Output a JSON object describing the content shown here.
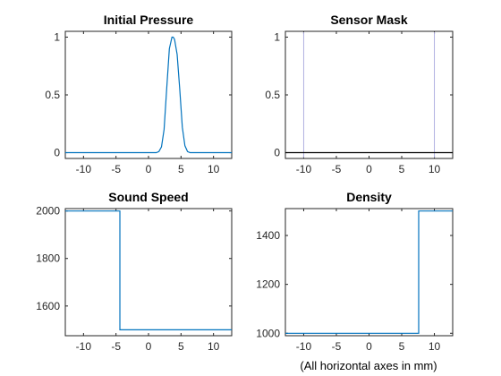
{
  "figure": {
    "note": "(All horizontal axes in mm)",
    "line_color": "#0072bd",
    "sensor_line_color": "#b0b0e0"
  },
  "chart_data": [
    {
      "type": "line",
      "title": "Initial Pressure",
      "xlabel": "",
      "ylabel": "",
      "xlim": [
        -12.8,
        12.8
      ],
      "ylim": [
        -0.05,
        1.05
      ],
      "xticks": [
        -10,
        -5,
        0,
        5,
        10
      ],
      "xtick_labels": [
        "-10",
        "-5",
        "0",
        "5",
        "10"
      ],
      "yticks": [
        0,
        0.5,
        1
      ],
      "ytick_labels": [
        "0",
        "0.5",
        "1"
      ],
      "grid": false,
      "series": [
        {
          "x": [
            -12.8,
            1.2,
            1.6,
            2.0,
            2.4,
            2.8,
            3.2,
            3.6,
            3.8,
            4.0,
            4.4,
            4.8,
            5.2,
            5.6,
            6.0,
            6.4,
            12.8
          ],
          "y": [
            0,
            0,
            0.01,
            0.05,
            0.2,
            0.55,
            0.9,
            1.0,
            1.0,
            0.98,
            0.85,
            0.55,
            0.22,
            0.06,
            0.01,
            0,
            0
          ]
        }
      ]
    },
    {
      "type": "line",
      "title": "Sensor Mask",
      "xlabel": "",
      "ylabel": "",
      "xlim": [
        -12.8,
        12.8
      ],
      "ylim": [
        -0.05,
        1.05
      ],
      "xticks": [
        -10,
        -5,
        0,
        5,
        10
      ],
      "xtick_labels": [
        "-10",
        "-5",
        "0",
        "5",
        "10"
      ],
      "yticks": [
        0,
        0.5,
        1
      ],
      "ytick_labels": [
        "0",
        "0.5",
        "1"
      ],
      "grid": false,
      "series": [
        {
          "x": [
            -12.8,
            12.8
          ],
          "y": [
            0,
            0
          ]
        }
      ],
      "sensor_positions": [
        -10,
        10
      ]
    },
    {
      "type": "line",
      "title": "Sound Speed",
      "xlabel": "",
      "ylabel": "",
      "xlim": [
        -12.8,
        12.8
      ],
      "ylim": [
        1475,
        2010
      ],
      "xticks": [
        -10,
        -5,
        0,
        5,
        10
      ],
      "xtick_labels": [
        "-10",
        "-5",
        "0",
        "5",
        "10"
      ],
      "yticks": [
        1600,
        1800,
        2000
      ],
      "ytick_labels": [
        "1600",
        "1800",
        "2000"
      ],
      "grid": false,
      "series": [
        {
          "x": [
            -12.8,
            -4.4,
            -4.4,
            12.8
          ],
          "y": [
            2000,
            2000,
            1500,
            1500
          ]
        }
      ]
    },
    {
      "type": "line",
      "title": "Density",
      "xlabel": "",
      "ylabel": "",
      "xlim": [
        -12.8,
        12.8
      ],
      "ylim": [
        990,
        1510
      ],
      "xticks": [
        -10,
        -5,
        0,
        5,
        10
      ],
      "xtick_labels": [
        "-10",
        "-5",
        "0",
        "5",
        "10"
      ],
      "yticks": [
        1000,
        1200,
        1400
      ],
      "ytick_labels": [
        "1000",
        "1200",
        "1400"
      ],
      "grid": false,
      "series": [
        {
          "x": [
            -12.8,
            7.6,
            7.6,
            12.8
          ],
          "y": [
            1000,
            1000,
            1500,
            1500
          ]
        }
      ]
    }
  ]
}
